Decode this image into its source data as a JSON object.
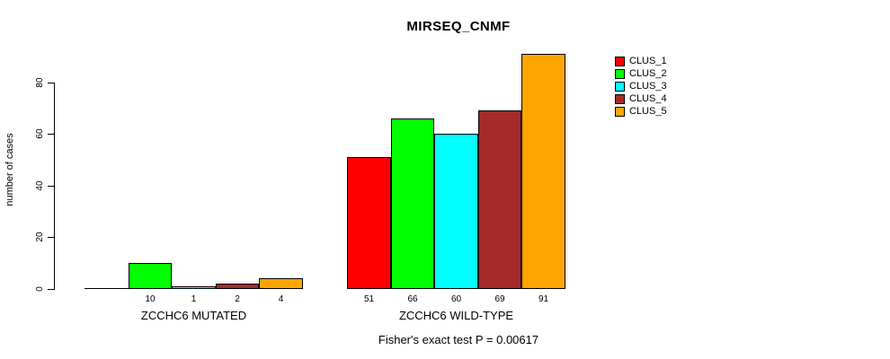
{
  "chart_data": {
    "type": "bar",
    "title": "MIRSEQ_CNMF",
    "ylabel": "number of cases",
    "xlabel": "",
    "categories": [
      "ZCCHC6 MUTATED",
      "ZCCHC6 WILD-TYPE"
    ],
    "series": [
      {
        "name": "CLUS_1",
        "color": "#FF0000",
        "values": [
          0,
          51
        ]
      },
      {
        "name": "CLUS_2",
        "color": "#00FF00",
        "values": [
          10,
          66
        ]
      },
      {
        "name": "CLUS_3",
        "color": "#00FFFF",
        "values": [
          1,
          60
        ]
      },
      {
        "name": "CLUS_4",
        "color": "#A52A2A",
        "values": [
          2,
          69
        ]
      },
      {
        "name": "CLUS_5",
        "color": "#FFA500",
        "values": [
          4,
          91
        ]
      }
    ],
    "bar_value_labels": [
      [
        "",
        "10",
        "1",
        "2",
        "4"
      ],
      [
        "51",
        "66",
        "60",
        "69",
        "91"
      ]
    ],
    "yticks": [
      0,
      20,
      40,
      60,
      80
    ],
    "ylim": [
      0,
      92
    ],
    "grid": false,
    "legend": {
      "position": "right",
      "entries": [
        "CLUS_1",
        "CLUS_2",
        "CLUS_3",
        "CLUS_4",
        "CLUS_5"
      ]
    },
    "annotation": "Fisher's exact test P = 0.00617"
  }
}
